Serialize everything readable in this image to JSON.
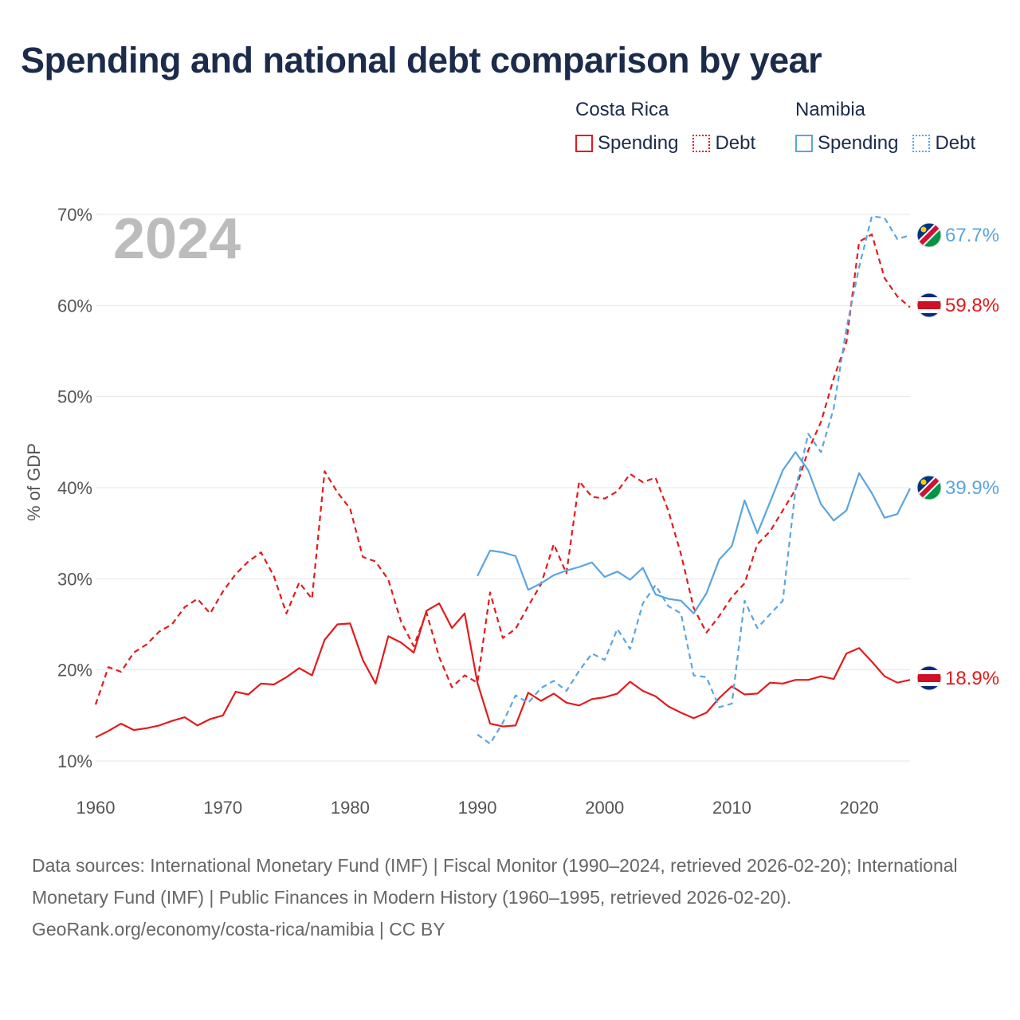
{
  "title": "Spending and national debt comparison by year",
  "legend": {
    "groups": [
      {
        "country": "Costa Rica",
        "color": "#e31a1c",
        "items": [
          {
            "label": "Spending",
            "style": "solid"
          },
          {
            "label": "Debt",
            "style": "dotted"
          }
        ]
      },
      {
        "country": "Namibia",
        "color": "#5aa5e0",
        "items": [
          {
            "label": "Spending",
            "style": "solid"
          },
          {
            "label": "Debt",
            "style": "dotted"
          }
        ]
      }
    ]
  },
  "year_display": "2024",
  "end_labels": [
    {
      "country": "Namibia",
      "series": "Debt",
      "text": "67.7%",
      "value": 67.7,
      "color": "#5aa5e0",
      "flag": "namibia-flag-icon"
    },
    {
      "country": "Costa Rica",
      "series": "Debt",
      "text": "59.8%",
      "value": 59.8,
      "color": "#e31a1c",
      "flag": "costa-rica-flag-icon"
    },
    {
      "country": "Namibia",
      "series": "Spending",
      "text": "39.9%",
      "value": 39.9,
      "color": "#5aa5e0",
      "flag": "namibia-flag-icon"
    },
    {
      "country": "Costa Rica",
      "series": "Spending",
      "text": "18.9%",
      "value": 18.9,
      "color": "#e31a1c",
      "flag": "costa-rica-flag-icon"
    }
  ],
  "chart_data": {
    "type": "line",
    "title": "Spending and national debt comparison by year",
    "xlabel": "",
    "ylabel": "% of GDP",
    "xlim": [
      1960,
      2024
    ],
    "ylim": [
      10,
      70
    ],
    "xticks": [
      1960,
      1970,
      1980,
      1990,
      2000,
      2010,
      2020
    ],
    "yticks": [
      10,
      20,
      30,
      40,
      50,
      60,
      70
    ],
    "ytick_labels": [
      "10%",
      "20%",
      "30%",
      "40%",
      "50%",
      "60%",
      "70%"
    ],
    "grid": true,
    "series": [
      {
        "name": "Costa Rica Spending",
        "color": "#e31a1c",
        "dash": "solid",
        "x": [
          1960,
          1961,
          1962,
          1963,
          1964,
          1965,
          1966,
          1967,
          1968,
          1969,
          1970,
          1971,
          1972,
          1973,
          1974,
          1975,
          1976,
          1977,
          1978,
          1979,
          1980,
          1981,
          1982,
          1983,
          1984,
          1985,
          1986,
          1987,
          1988,
          1989,
          1990,
          1991,
          1992,
          1993,
          1994,
          1995,
          1996,
          1997,
          1998,
          1999,
          2000,
          2001,
          2002,
          2003,
          2004,
          2005,
          2006,
          2007,
          2008,
          2009,
          2010,
          2011,
          2012,
          2013,
          2014,
          2015,
          2016,
          2017,
          2018,
          2019,
          2020,
          2021,
          2022,
          2023,
          2024
        ],
        "y": [
          12.6,
          13.3,
          14.1,
          13.4,
          13.6,
          13.9,
          14.4,
          14.8,
          13.9,
          14.6,
          15.0,
          17.6,
          17.3,
          18.5,
          18.4,
          19.2,
          20.2,
          19.4,
          23.3,
          25.0,
          25.1,
          21.1,
          18.5,
          23.7,
          23.0,
          21.9,
          26.5,
          27.3,
          24.6,
          26.2,
          18.6,
          14.1,
          13.8,
          13.9,
          17.5,
          16.6,
          17.4,
          16.4,
          16.1,
          16.8,
          17.0,
          17.4,
          18.7,
          17.7,
          17.1,
          16.0,
          15.3,
          14.7,
          15.3,
          16.9,
          18.2,
          17.3,
          17.4,
          18.6,
          18.5,
          18.9,
          18.9,
          19.3,
          19.0,
          21.8,
          22.4,
          20.9,
          19.3,
          18.6,
          18.9
        ]
      },
      {
        "name": "Costa Rica Debt",
        "color": "#e31a1c",
        "dash": "dashed",
        "x": [
          1960,
          1961,
          1962,
          1963,
          1964,
          1965,
          1966,
          1967,
          1968,
          1969,
          1970,
          1971,
          1972,
          1973,
          1974,
          1975,
          1976,
          1977,
          1978,
          1979,
          1980,
          1981,
          1982,
          1983,
          1984,
          1985,
          1986,
          1987,
          1988,
          1989,
          1990,
          1991,
          1992,
          1993,
          1994,
          1995,
          1996,
          1997,
          1998,
          1999,
          2000,
          2001,
          2002,
          2003,
          2004,
          2005,
          2006,
          2007,
          2008,
          2009,
          2010,
          2011,
          2012,
          2013,
          2014,
          2015,
          2016,
          2017,
          2018,
          2019,
          2020,
          2021,
          2022,
          2023,
          2024
        ],
        "y": [
          16.2,
          20.3,
          19.8,
          21.9,
          22.8,
          24.2,
          25.0,
          26.9,
          27.8,
          26.2,
          28.6,
          30.5,
          31.9,
          32.9,
          30.3,
          26.2,
          29.6,
          27.8,
          41.8,
          39.5,
          37.7,
          32.4,
          31.9,
          29.9,
          25.3,
          22.6,
          26.3,
          21.4,
          18.1,
          19.4,
          18.6,
          28.5,
          23.5,
          24.5,
          27.0,
          29.4,
          33.8,
          30.6,
          40.7,
          39.0,
          38.8,
          39.6,
          41.5,
          40.6,
          41.1,
          37.5,
          32.7,
          26.8,
          24.1,
          25.9,
          28.0,
          29.5,
          33.8,
          35.2,
          37.5,
          39.8,
          44.1,
          47.2,
          52.0,
          56.0,
          67.0,
          67.8,
          63.0,
          61.0,
          59.8
        ]
      },
      {
        "name": "Namibia Spending",
        "color": "#5aa5e0",
        "dash": "solid",
        "x": [
          1990,
          1991,
          1992,
          1993,
          1994,
          1995,
          1996,
          1997,
          1998,
          1999,
          2000,
          2001,
          2002,
          2003,
          2004,
          2005,
          2006,
          2007,
          2008,
          2009,
          2010,
          2011,
          2012,
          2013,
          2014,
          2015,
          2016,
          2017,
          2018,
          2019,
          2020,
          2021,
          2022,
          2023,
          2024
        ],
        "y": [
          30.3,
          33.1,
          32.9,
          32.5,
          28.8,
          29.5,
          30.4,
          30.9,
          31.3,
          31.8,
          30.2,
          30.8,
          29.9,
          31.2,
          28.3,
          27.8,
          27.6,
          26.2,
          28.4,
          32.1,
          33.6,
          38.6,
          35.0,
          38.4,
          41.9,
          43.9,
          41.9,
          38.2,
          36.4,
          37.5,
          41.6,
          39.4,
          36.7,
          37.1,
          39.9
        ]
      },
      {
        "name": "Namibia Debt",
        "color": "#5aa5e0",
        "dash": "dashed",
        "x": [
          1990,
          1991,
          1992,
          1993,
          1994,
          1995,
          1996,
          1997,
          1998,
          1999,
          2000,
          2001,
          2002,
          2003,
          2004,
          2005,
          2006,
          2007,
          2008,
          2009,
          2010,
          2011,
          2012,
          2013,
          2014,
          2015,
          2016,
          2017,
          2018,
          2019,
          2020,
          2021,
          2022,
          2023,
          2024
        ],
        "y": [
          12.9,
          11.9,
          14.2,
          17.2,
          16.4,
          18.0,
          18.8,
          17.7,
          19.9,
          21.8,
          21.1,
          24.5,
          22.3,
          27.3,
          29.3,
          27.0,
          26.2,
          19.4,
          19.2,
          15.9,
          16.3,
          27.6,
          24.6,
          26.1,
          27.6,
          39.8,
          45.9,
          43.9,
          48.7,
          57.5,
          64.2,
          69.8,
          69.6,
          67.3,
          67.7
        ]
      }
    ]
  },
  "footer": {
    "sources": "Data sources: International Monetary Fund (IMF) | Fiscal Monitor (1990–2024, retrieved 2026-02-20); International Monetary Fund (IMF) | Public Finances in Modern History (1960–1995, retrieved 2026-02-20).",
    "credit": "GeoRank.org/economy/costa-rica/namibia | CC BY"
  }
}
